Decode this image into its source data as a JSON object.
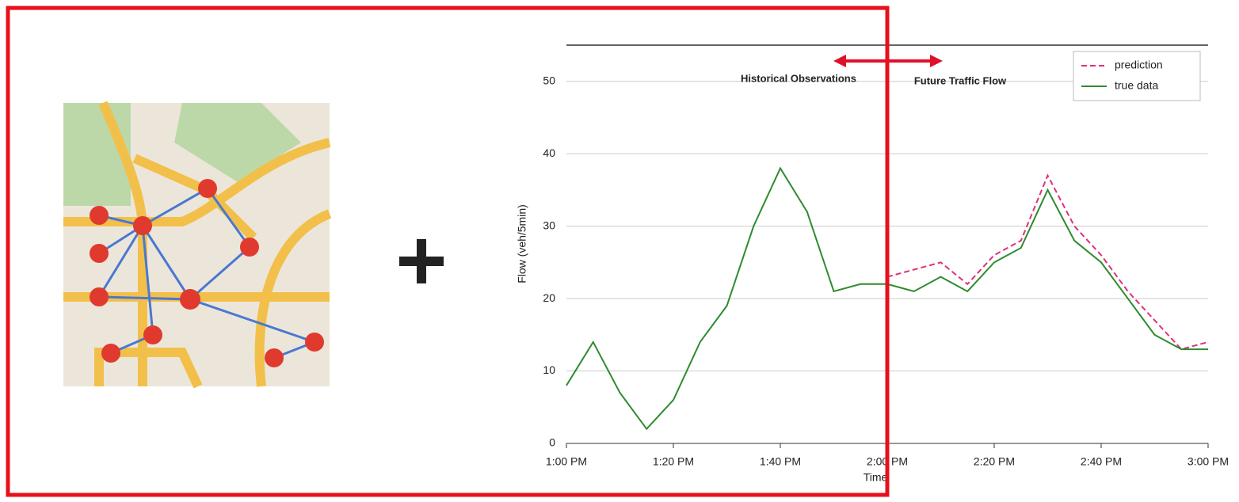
{
  "chart_data": {
    "type": "line",
    "annotations": [
      "Historical Observations",
      "Future Traffic Flow"
    ],
    "x_label": "Time",
    "y_label": "Flow (veh/5min)",
    "x": [
      "1:00 PM",
      "1:05 PM",
      "1:10 PM",
      "1:15 PM",
      "1:20 PM",
      "1:25 PM",
      "1:30 PM",
      "1:35 PM",
      "1:40 PM",
      "1:45 PM",
      "1:50 PM",
      "1:55 PM",
      "2:00 PM",
      "2:05 PM",
      "2:10 PM",
      "2:15 PM",
      "2:20 PM",
      "2:25 PM",
      "2:30 PM",
      "2:35 PM",
      "2:40 PM",
      "2:45 PM",
      "2:50 PM",
      "2:55 PM",
      "3:00 PM"
    ],
    "xticks": [
      "1:00 PM",
      "1:20 PM",
      "1:40 PM",
      "2:00 PM",
      "2:20 PM",
      "2:40 PM",
      "3:00 PM"
    ],
    "series": [
      {
        "name": "prediction",
        "color": "#e0307a",
        "dash": true,
        "values": [
          null,
          null,
          null,
          null,
          null,
          null,
          null,
          null,
          null,
          null,
          null,
          null,
          23,
          24,
          25,
          22,
          26,
          28,
          37,
          30,
          26,
          21,
          17,
          13,
          14
        ]
      },
      {
        "name": "true data",
        "color": "#2e8b2e",
        "dash": false,
        "values": [
          8,
          14,
          7,
          2,
          6,
          14,
          19,
          30,
          38,
          32,
          21,
          22,
          22,
          21,
          23,
          21,
          25,
          27,
          35,
          28,
          25,
          20,
          15,
          13,
          13
        ]
      }
    ],
    "ylim": [
      0,
      55
    ],
    "yticks": [
      0,
      10,
      20,
      30,
      40,
      50
    ],
    "grid": true,
    "legend": "top-right"
  }
}
